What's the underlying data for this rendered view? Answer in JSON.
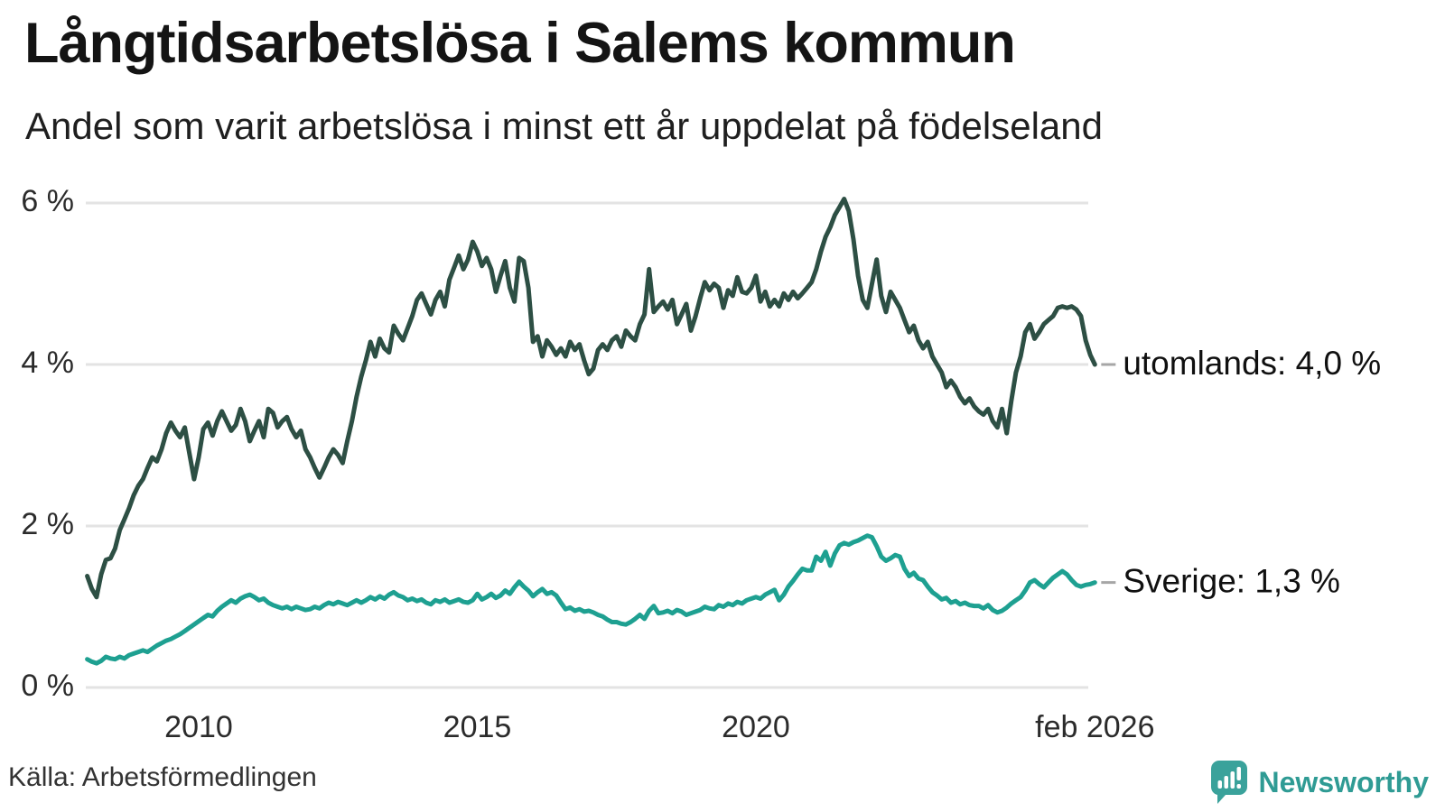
{
  "header": {
    "title": "Långtidsarbetslösa i Salems kommun",
    "subtitle": "Andel som varit arbetslösa i minst ett år uppdelat på födelseland"
  },
  "footer": {
    "source": "Källa: Arbetsförmedlingen",
    "brand": "Newsworthy"
  },
  "colors": {
    "utomlands_line": "#2d4f44",
    "sverige_line": "#1ea091",
    "gridline": "#e3e3e3",
    "annotation_dash": "#a6a6a6",
    "brand_teal": "#3aa29b"
  },
  "chart_data": {
    "type": "line",
    "title": "Långtidsarbetslösa i Salems kommun",
    "subtitle": "Andel som varit arbetslösa i minst ett år uppdelat på födelseland",
    "x_unit": "month",
    "x_start_decimal_year": 2008.0,
    "x_end_label": "feb 2026",
    "ylim": [
      0,
      6
    ],
    "grid": "horizontal",
    "legend_position": "right-annotations",
    "yticks": [
      {
        "value": 6,
        "label": "6 %"
      },
      {
        "value": 4,
        "label": "4 %"
      },
      {
        "value": 2,
        "label": "2 %"
      },
      {
        "value": 0,
        "label": "0 %"
      }
    ],
    "xticks": [
      {
        "at": 2010.0,
        "label": "2010"
      },
      {
        "at": 2015.0,
        "label": "2015"
      },
      {
        "at": 2020.0,
        "label": "2020"
      },
      {
        "at": 2026.083,
        "label": "feb 2026"
      }
    ],
    "series": [
      {
        "name": "utomlands",
        "annotation": "utomlands: 4,0 %",
        "color": "#2d4f44",
        "last_value": 4.0,
        "values": [
          1.38,
          1.22,
          1.12,
          1.4,
          1.58,
          1.6,
          1.72,
          1.95,
          2.08,
          2.22,
          2.38,
          2.5,
          2.58,
          2.72,
          2.85,
          2.8,
          2.95,
          3.15,
          3.28,
          3.18,
          3.1,
          3.22,
          2.9,
          2.58,
          2.85,
          3.2,
          3.28,
          3.12,
          3.3,
          3.42,
          3.3,
          3.18,
          3.25,
          3.45,
          3.3,
          3.05,
          3.18,
          3.3,
          3.1,
          3.45,
          3.4,
          3.22,
          3.3,
          3.35,
          3.2,
          3.1,
          3.18,
          2.95,
          2.85,
          2.72,
          2.6,
          2.72,
          2.85,
          2.95,
          2.88,
          2.78,
          3.05,
          3.3,
          3.6,
          3.85,
          4.05,
          4.28,
          4.1,
          4.32,
          4.2,
          4.15,
          4.48,
          4.38,
          4.3,
          4.45,
          4.6,
          4.8,
          4.88,
          4.75,
          4.62,
          4.8,
          4.9,
          4.72,
          5.05,
          5.2,
          5.35,
          5.18,
          5.3,
          5.52,
          5.4,
          5.22,
          5.32,
          5.18,
          4.9,
          5.1,
          5.28,
          4.95,
          4.78,
          5.32,
          5.28,
          4.95,
          4.28,
          4.35,
          4.1,
          4.3,
          4.22,
          4.12,
          4.2,
          4.1,
          4.28,
          4.18,
          4.25,
          4.05,
          3.88,
          3.95,
          4.18,
          4.25,
          4.18,
          4.3,
          4.35,
          4.22,
          4.42,
          4.35,
          4.3,
          4.5,
          4.62,
          5.18,
          4.65,
          4.72,
          4.78,
          4.68,
          4.8,
          4.5,
          4.62,
          4.75,
          4.42,
          4.6,
          4.82,
          5.02,
          4.92,
          5.0,
          4.95,
          4.7,
          4.92,
          4.85,
          5.08,
          4.9,
          4.88,
          4.95,
          5.1,
          4.78,
          4.9,
          4.72,
          4.8,
          4.72,
          4.88,
          4.8,
          4.9,
          4.82,
          4.88,
          4.95,
          5.02,
          5.18,
          5.4,
          5.58,
          5.7,
          5.85,
          5.95,
          6.05,
          5.9,
          5.55,
          5.1,
          4.8,
          4.7,
          5.0,
          5.3,
          4.85,
          4.65,
          4.9,
          4.8,
          4.7,
          4.55,
          4.4,
          4.48,
          4.3,
          4.2,
          4.28,
          4.1,
          4.0,
          3.9,
          3.72,
          3.8,
          3.72,
          3.6,
          3.52,
          3.58,
          3.48,
          3.42,
          3.38,
          3.45,
          3.3,
          3.22,
          3.45,
          3.15,
          3.55,
          3.9,
          4.1,
          4.4,
          4.5,
          4.32,
          4.4,
          4.5,
          4.55,
          4.6,
          4.7,
          4.72,
          4.7,
          4.72,
          4.68,
          4.6,
          4.3,
          4.12,
          4.0
        ]
      },
      {
        "name": "Sverige",
        "annotation": "Sverige: 1,3 %",
        "color": "#1ea091",
        "last_value": 1.3,
        "values": [
          0.35,
          0.32,
          0.3,
          0.33,
          0.38,
          0.36,
          0.35,
          0.38,
          0.36,
          0.4,
          0.42,
          0.44,
          0.46,
          0.44,
          0.48,
          0.52,
          0.55,
          0.58,
          0.6,
          0.63,
          0.66,
          0.7,
          0.74,
          0.78,
          0.82,
          0.86,
          0.9,
          0.88,
          0.95,
          1.0,
          1.04,
          1.08,
          1.05,
          1.1,
          1.13,
          1.15,
          1.12,
          1.08,
          1.1,
          1.05,
          1.02,
          1.0,
          0.98,
          1.0,
          0.97,
          1.0,
          0.98,
          0.96,
          0.97,
          1.0,
          0.98,
          1.02,
          1.05,
          1.03,
          1.06,
          1.04,
          1.02,
          1.05,
          1.08,
          1.05,
          1.08,
          1.12,
          1.09,
          1.13,
          1.1,
          1.15,
          1.18,
          1.14,
          1.12,
          1.08,
          1.1,
          1.07,
          1.09,
          1.05,
          1.03,
          1.08,
          1.06,
          1.09,
          1.05,
          1.07,
          1.09,
          1.06,
          1.05,
          1.08,
          1.16,
          1.09,
          1.12,
          1.16,
          1.11,
          1.14,
          1.2,
          1.16,
          1.24,
          1.31,
          1.25,
          1.2,
          1.13,
          1.18,
          1.22,
          1.16,
          1.18,
          1.14,
          1.05,
          0.97,
          0.99,
          0.95,
          0.97,
          0.94,
          0.95,
          0.93,
          0.9,
          0.88,
          0.84,
          0.81,
          0.81,
          0.79,
          0.78,
          0.81,
          0.85,
          0.9,
          0.85,
          0.95,
          1.01,
          0.92,
          0.93,
          0.95,
          0.92,
          0.96,
          0.94,
          0.9,
          0.92,
          0.94,
          0.96,
          1.0,
          0.98,
          0.97,
          1.02,
          1.0,
          1.04,
          1.02,
          1.06,
          1.04,
          1.08,
          1.1,
          1.12,
          1.1,
          1.15,
          1.18,
          1.21,
          1.08,
          1.15,
          1.25,
          1.32,
          1.4,
          1.47,
          1.45,
          1.45,
          1.62,
          1.57,
          1.68,
          1.51,
          1.66,
          1.76,
          1.79,
          1.77,
          1.8,
          1.82,
          1.85,
          1.88,
          1.86,
          1.75,
          1.62,
          1.57,
          1.6,
          1.64,
          1.62,
          1.47,
          1.38,
          1.42,
          1.35,
          1.33,
          1.25,
          1.18,
          1.14,
          1.09,
          1.11,
          1.05,
          1.07,
          1.03,
          1.05,
          1.02,
          1.01,
          1.01,
          0.98,
          1.02,
          0.96,
          0.93,
          0.95,
          0.99,
          1.04,
          1.08,
          1.12,
          1.2,
          1.3,
          1.33,
          1.28,
          1.24,
          1.3,
          1.36,
          1.4,
          1.44,
          1.4,
          1.33,
          1.27,
          1.25,
          1.27,
          1.28,
          1.3
        ]
      }
    ]
  }
}
